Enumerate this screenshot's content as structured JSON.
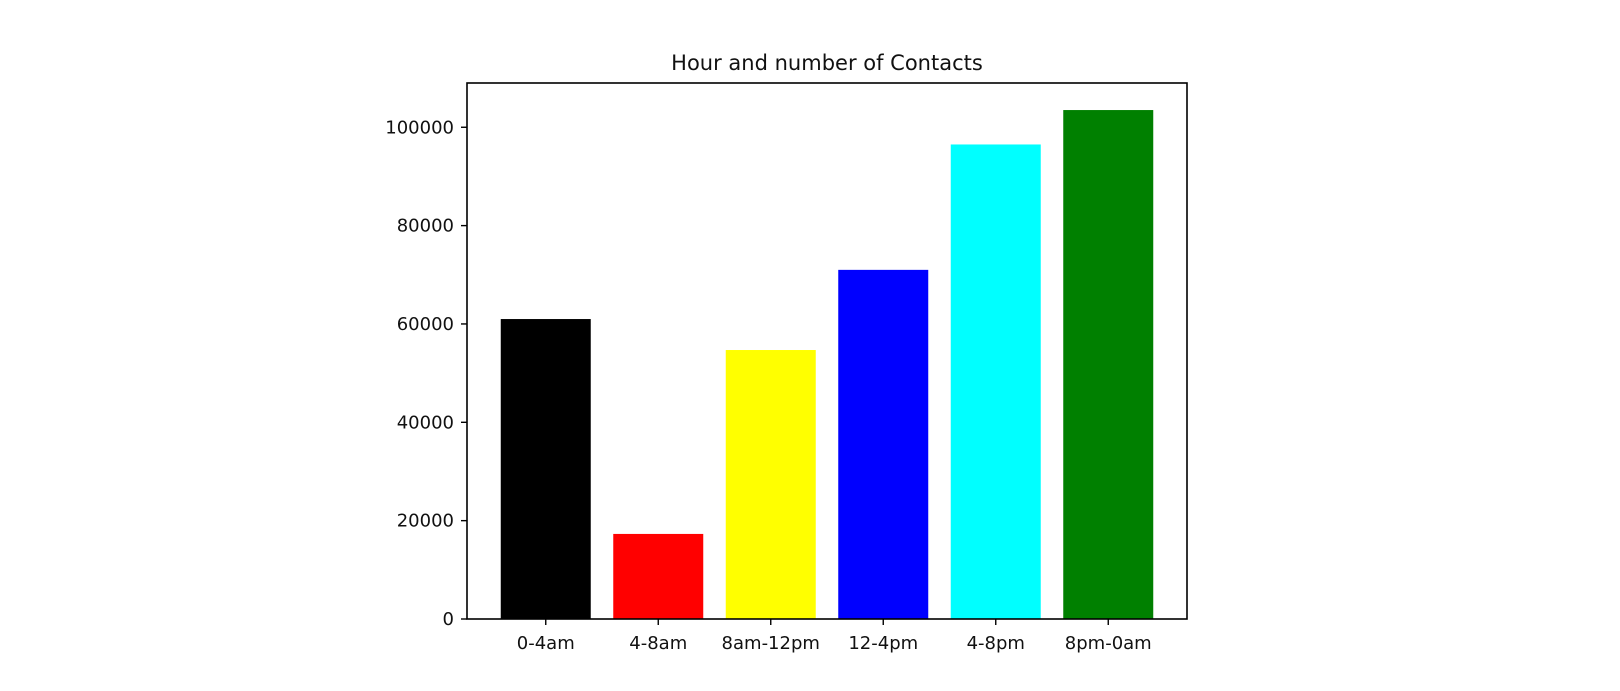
{
  "chart_data": {
    "type": "bar",
    "title": "Hour and number of Contacts",
    "xlabel": "",
    "ylabel": "",
    "categories": [
      "0-4am",
      "4-8am",
      "8am-12pm",
      "12-4pm",
      "4-8pm",
      "8pm-0am"
    ],
    "values": [
      61000,
      17300,
      54700,
      71000,
      96500,
      103500
    ],
    "colors": [
      "#000000",
      "#ff0000",
      "#ffff00",
      "#0000ff",
      "#00ffff",
      "#008000"
    ],
    "ylim": [
      0,
      109000
    ],
    "yticks": [
      0,
      20000,
      40000,
      60000,
      80000,
      100000
    ],
    "grid": false,
    "legend": "none"
  }
}
